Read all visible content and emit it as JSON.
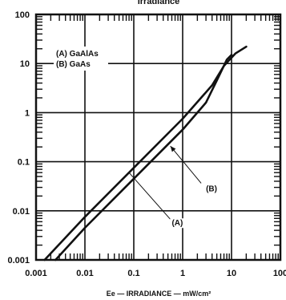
{
  "chart_data": {
    "type": "line",
    "title": "Irradiance",
    "xlabel": "Ee — IRRADIANCE — mW/cm²",
    "ylabel": "",
    "x_scale": "log",
    "y_scale": "log",
    "xlim": [
      0.001,
      100
    ],
    "ylim": [
      0.001,
      100
    ],
    "x_ticks": [
      "0.001",
      "0.01",
      "0.1",
      "1",
      "10",
      "100"
    ],
    "y_ticks": [
      "0.001",
      "0.01",
      "0.1",
      "1",
      "10",
      "100"
    ],
    "grid": true,
    "legend": {
      "placement": "top-left",
      "entries": [
        "(A) GaAlAs",
        "(B) GaAs"
      ]
    },
    "series": [
      {
        "name": "(A)",
        "x": [
          0.0015,
          0.01,
          0.1,
          1,
          4,
          7,
          12,
          20
        ],
        "y": [
          0.001,
          0.0075,
          0.075,
          0.75,
          3.6,
          9,
          16,
          22
        ]
      },
      {
        "name": "(B)",
        "x": [
          0.0025,
          0.01,
          0.1,
          1,
          3,
          5,
          8,
          10
        ],
        "y": [
          0.001,
          0.0045,
          0.045,
          0.45,
          1.6,
          4.5,
          12,
          15
        ]
      }
    ],
    "annotations": [
      {
        "text": "(A)",
        "target_series": "(A)"
      },
      {
        "text": "(B)",
        "target_series": "(B)"
      }
    ]
  }
}
